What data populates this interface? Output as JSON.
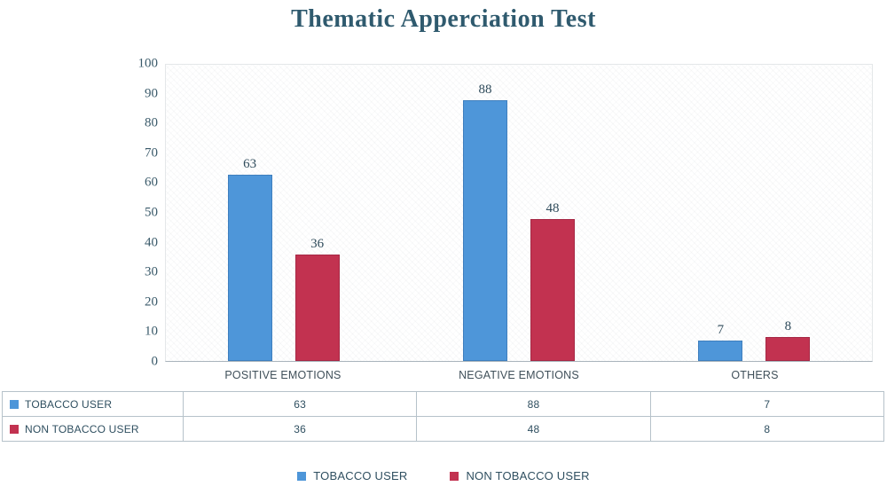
{
  "chart_data": {
    "type": "bar",
    "title": "Thematic Apperciation Test",
    "categories": [
      "POSITIVE EMOTIONS",
      "NEGATIVE EMOTIONS",
      "OTHERS"
    ],
    "series": [
      {
        "name": "TOBACCO USER",
        "color": "#4E96D9",
        "border_color": "#3F7FBE",
        "values": [
          63,
          88,
          7
        ]
      },
      {
        "name": "NON TOBACCO USER",
        "color": "#C23250",
        "border_color": "#A62845",
        "values": [
          36,
          48,
          8
        ]
      }
    ],
    "ylim": [
      0,
      100
    ],
    "ytick_step": 10,
    "grid": false,
    "legend_position": "bottom",
    "data_table_shown": true
  },
  "colors": {
    "title_text": "#2F5A6E",
    "axis_text": "#3A5A6A",
    "table_border": "#b6c2ca"
  }
}
